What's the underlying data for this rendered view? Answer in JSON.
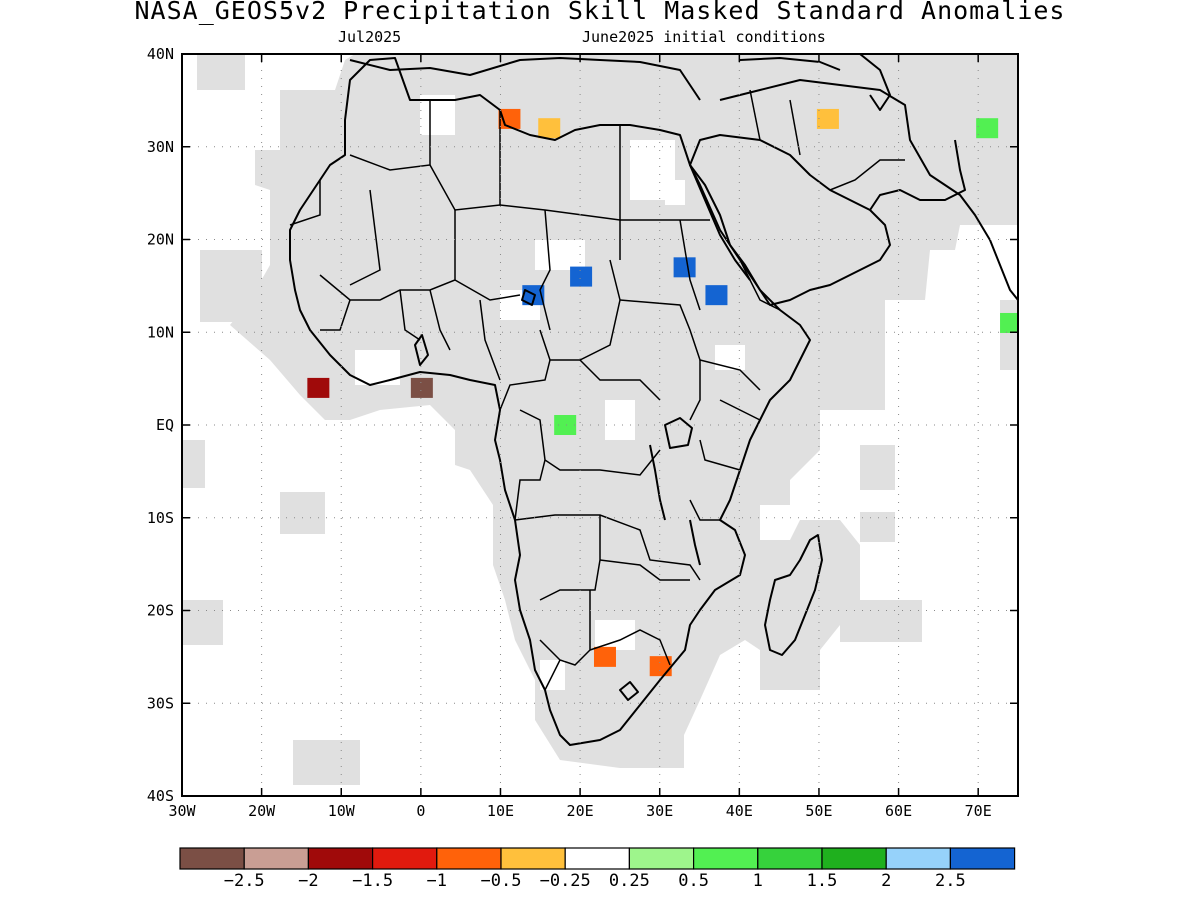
{
  "title": "NASA_GEOS5v2 Precipitation Skill Masked Standard Anomalies",
  "subtitle_left": "Jul2025",
  "subtitle_right": "June2025 initial conditions",
  "x_ticks": [
    "30W",
    "20W",
    "10W",
    "0",
    "10E",
    "20E",
    "30E",
    "40E",
    "50E",
    "60E",
    "70E"
  ],
  "y_ticks": [
    "40N",
    "30N",
    "20N",
    "10N",
    "EQ",
    "10S",
    "20S",
    "30S",
    "40S"
  ],
  "colors": {
    "masked_gray": "#e0e0e0",
    "coast": "#000000",
    "grid": "#8a8a8a"
  },
  "colorbar": {
    "colors": [
      "#7b4f45",
      "#c99e94",
      "#a00a0a",
      "#e11a0e",
      "#ff620a",
      "#ffc03c",
      "#ffffff",
      "#9ef58c",
      "#52f052",
      "#36d23c",
      "#1fb01e",
      "#96d2fa",
      "#1464d2"
    ],
    "labels": [
      "−2.5",
      "−2",
      "−1.5",
      "−1",
      "−0.5",
      "−0.25",
      "0.25",
      "0.5",
      "1",
      "1.5",
      "2",
      "2.5"
    ]
  },
  "anomaly_patches": [
    {
      "name": "gulf-of-guinea-west",
      "color": "#a00a0a",
      "lon": -13,
      "lat": 4
    },
    {
      "name": "gulf-of-guinea-east",
      "color": "#7b4f45",
      "lon": 0,
      "lat": 4
    },
    {
      "name": "libya-west",
      "color": "#ff620a",
      "lon": 11,
      "lat": 33
    },
    {
      "name": "libya-coast",
      "color": "#ffc03c",
      "lon": 16,
      "lat": 32
    },
    {
      "name": "iran",
      "color": "#ffc03c",
      "lon": 51,
      "lat": 33
    },
    {
      "name": "pakistan",
      "color": "#52f052",
      "lon": 71,
      "lat": 32
    },
    {
      "name": "chad-north",
      "color": "#1464d2",
      "lon": 20,
      "lat": 16
    },
    {
      "name": "lake-chad",
      "color": "#1464d2",
      "lon": 14,
      "lat": 14
    },
    {
      "name": "sudan",
      "color": "#1464d2",
      "lon": 33,
      "lat": 17
    },
    {
      "name": "ethiopia",
      "color": "#1464d2",
      "lon": 37,
      "lat": 14
    },
    {
      "name": "central-africa",
      "color": "#52f052",
      "lon": 18,
      "lat": 0
    },
    {
      "name": "botswana",
      "color": "#ff620a",
      "lon": 23,
      "lat": -25
    },
    {
      "name": "mozambique",
      "color": "#ff620a",
      "lon": 30,
      "lat": -26
    },
    {
      "name": "india-west",
      "color": "#52f052",
      "lon": 74,
      "lat": 11
    }
  ]
}
